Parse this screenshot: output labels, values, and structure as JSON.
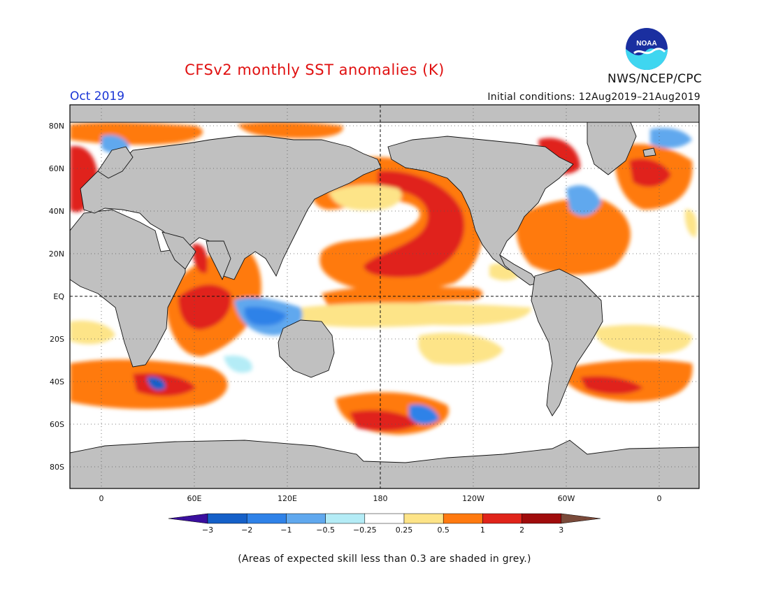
{
  "title": "CFSv2 monthly SST anomalies (K)",
  "valid_month": "Oct 2019",
  "agency": "NWS/NCEP/CPC",
  "logo_text": "NOAA",
  "initial_conditions": "Initial conditions: 12Aug2019–21Aug2019",
  "footnote": "(Areas of expected skill less than 0.3 are shaded in grey.)",
  "map": {
    "lon_labels": [
      "0",
      "60E",
      "120E",
      "180",
      "120W",
      "60W",
      "0"
    ],
    "lat_labels": [
      "80N",
      "60N",
      "40N",
      "20N",
      "EQ",
      "20S",
      "40S",
      "60S",
      "80S"
    ],
    "colors": {
      "land": "#c0c0c0",
      "ocean": "#ffffff",
      "frame": "#000000"
    }
  },
  "colorbar": {
    "ticks": [
      "−3",
      "−2",
      "−1",
      "−0.5",
      "−0.25",
      "0.25",
      "0.5",
      "1",
      "2",
      "3"
    ],
    "colors": [
      "#3a0f9e",
      "#1560c8",
      "#2f82e8",
      "#60a8ee",
      "#b4ecf6",
      "#ffffff",
      "#fde488",
      "#ff7a10",
      "#e0241a",
      "#a00c0c",
      "#7a4a3a"
    ]
  }
}
